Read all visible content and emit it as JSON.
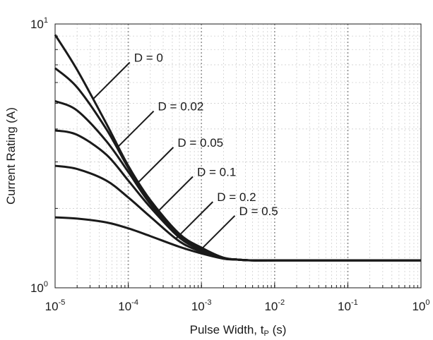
{
  "chart_data": {
    "type": "line",
    "x_scale": "log",
    "y_scale": "log",
    "xlim": [
      1e-05,
      1
    ],
    "ylim": [
      1,
      10
    ],
    "xlabel": "Pulse Width, t",
    "xlabel_sub": "P",
    "xlabel_unit": "(s)",
    "ylabel": "Current Rating (A)",
    "x_ticks": [
      {
        "value": 1e-05,
        "base": "10",
        "exp": "-5"
      },
      {
        "value": 0.0001,
        "base": "10",
        "exp": "-4"
      },
      {
        "value": 0.001,
        "base": "10",
        "exp": "-3"
      },
      {
        "value": 0.01,
        "base": "10",
        "exp": "-2"
      },
      {
        "value": 0.1,
        "base": "10",
        "exp": "-1"
      },
      {
        "value": 1,
        "base": "10",
        "exp": "0"
      }
    ],
    "y_ticks": [
      {
        "value": 1,
        "base": "10",
        "exp": "0"
      },
      {
        "value": 10,
        "base": "10",
        "exp": "1"
      }
    ],
    "grid": true,
    "legend": "none",
    "series": [
      {
        "name": "D = 0",
        "label": "D = 0",
        "annotation_at": [
          3.3e-05,
          9.6
        ],
        "x": [
          1e-05,
          2e-05,
          5e-05,
          0.0001,
          0.0002,
          0.0005,
          0.001,
          0.002,
          0.003,
          0.005,
          0.01,
          0.1,
          1
        ],
        "y": [
          9.1,
          6.7,
          4.2,
          2.9,
          2.15,
          1.6,
          1.42,
          1.3,
          1.28,
          1.27,
          1.27,
          1.27,
          1.27
        ]
      },
      {
        "name": "D = 0.02",
        "label": "D = 0.02",
        "annotation_at": [
          7e-05,
          7.2
        ],
        "x": [
          1e-05,
          2e-05,
          5e-05,
          0.0001,
          0.0002,
          0.0005,
          0.001,
          0.002,
          0.003,
          0.005,
          0.01,
          0.1,
          1
        ],
        "y": [
          6.8,
          5.75,
          4.0,
          2.85,
          2.12,
          1.58,
          1.41,
          1.3,
          1.28,
          1.27,
          1.27,
          1.27,
          1.27
        ]
      },
      {
        "name": "D = 0.05",
        "label": "D = 0.05",
        "annotation_at": [
          0.00013,
          5.5
        ],
        "x": [
          1e-05,
          2e-05,
          5e-05,
          0.0001,
          0.0002,
          0.0005,
          0.001,
          0.002,
          0.003,
          0.005,
          0.01,
          0.1,
          1
        ],
        "y": [
          5.1,
          4.7,
          3.6,
          2.75,
          2.08,
          1.57,
          1.4,
          1.3,
          1.28,
          1.27,
          1.27,
          1.27,
          1.27
        ]
      },
      {
        "name": "D = 0.1",
        "label": "D = 0.1",
        "annotation_at": [
          0.00024,
          4.2
        ],
        "x": [
          1e-05,
          2e-05,
          5e-05,
          0.0001,
          0.0002,
          0.0005,
          0.001,
          0.002,
          0.003,
          0.005,
          0.01,
          0.1,
          1
        ],
        "y": [
          3.95,
          3.8,
          3.2,
          2.55,
          2.02,
          1.55,
          1.39,
          1.3,
          1.28,
          1.27,
          1.27,
          1.27,
          1.27
        ]
      },
      {
        "name": "D = 0.2",
        "label": "D = 0.2",
        "annotation_at": [
          0.00045,
          3.1
        ],
        "x": [
          1e-05,
          2e-05,
          5e-05,
          0.0001,
          0.0002,
          0.0005,
          0.001,
          0.002,
          0.003,
          0.005,
          0.01,
          0.1,
          1
        ],
        "y": [
          2.9,
          2.82,
          2.55,
          2.2,
          1.86,
          1.5,
          1.37,
          1.29,
          1.28,
          1.27,
          1.27,
          1.27,
          1.27
        ]
      },
      {
        "name": "D = 0.5",
        "label": "D = 0.5",
        "annotation_at": [
          0.0009,
          2.25
        ],
        "x": [
          1e-05,
          2e-05,
          5e-05,
          0.0001,
          0.0002,
          0.0005,
          0.001,
          0.002,
          0.003,
          0.005,
          0.01,
          0.1,
          1
        ],
        "y": [
          1.85,
          1.83,
          1.77,
          1.68,
          1.57,
          1.43,
          1.35,
          1.29,
          1.28,
          1.27,
          1.27,
          1.27,
          1.27
        ]
      }
    ]
  }
}
